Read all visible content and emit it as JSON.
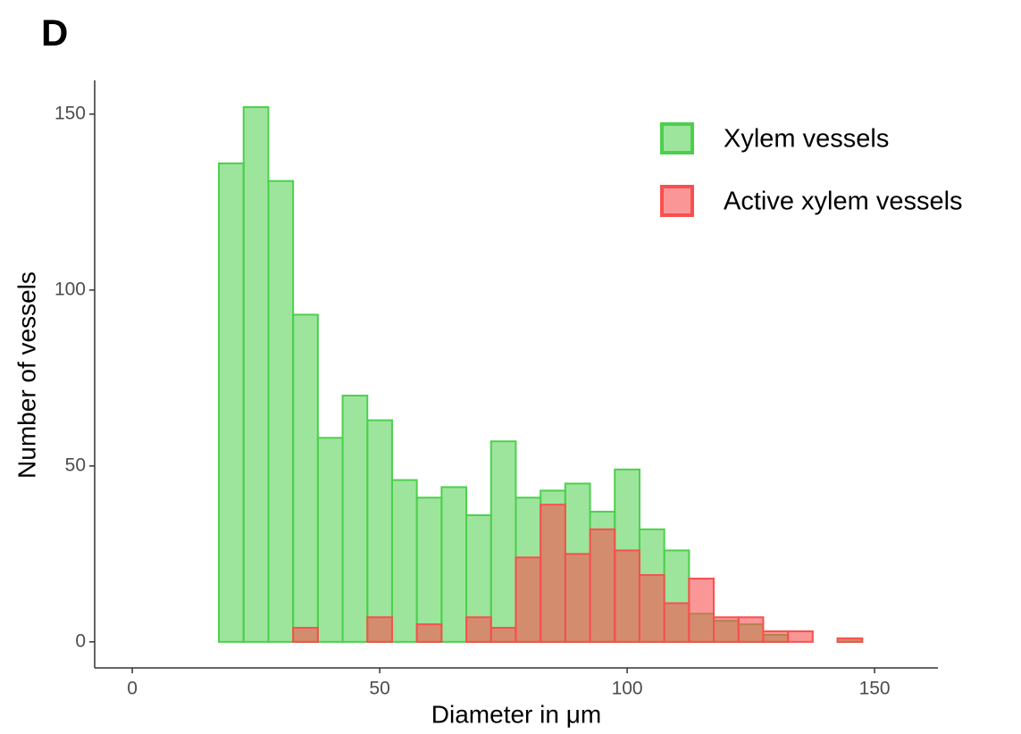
{
  "chart_data": {
    "type": "histogram",
    "title": "D",
    "xlabel": "Diameter in μm",
    "ylabel": "Number of vessels",
    "bins": [
      2.5,
      7.5,
      12.5,
      17.5,
      22.5,
      27.5,
      32.5,
      37.5,
      42.5,
      47.5,
      52.5,
      57.5,
      62.5,
      67.5,
      72.5,
      77.5,
      82.5,
      87.5,
      92.5,
      97.5,
      102.5,
      107.5,
      112.5,
      117.5,
      122.5,
      127.5,
      132.5,
      137.5,
      142.5,
      147.5,
      152.5
    ],
    "series": [
      {
        "name": "Xylem vessels",
        "color": "#4cd04c",
        "values": [
          0,
          0,
          0,
          136,
          152,
          131,
          93,
          58,
          70,
          63,
          46,
          41,
          44,
          36,
          57,
          41,
          43,
          45,
          37,
          49,
          32,
          26,
          8,
          6,
          5,
          2,
          0,
          0,
          1,
          0
        ]
      },
      {
        "name": "Active xylem vessels",
        "color": "#f85050",
        "values": [
          0,
          0,
          0,
          0,
          0,
          0,
          4,
          0,
          0,
          7,
          0,
          5,
          0,
          7,
          4,
          24,
          39,
          25,
          32,
          26,
          19,
          11,
          18,
          7,
          7,
          3,
          3,
          0,
          1,
          0
        ]
      }
    ],
    "xlim": [
      -7.6,
      162.8
    ],
    "xticks": [
      0,
      50,
      100,
      150
    ],
    "ylim": [
      -7.4,
      159.6
    ],
    "yticks": [
      0,
      50,
      100,
      150
    ],
    "legend": "top-right"
  }
}
